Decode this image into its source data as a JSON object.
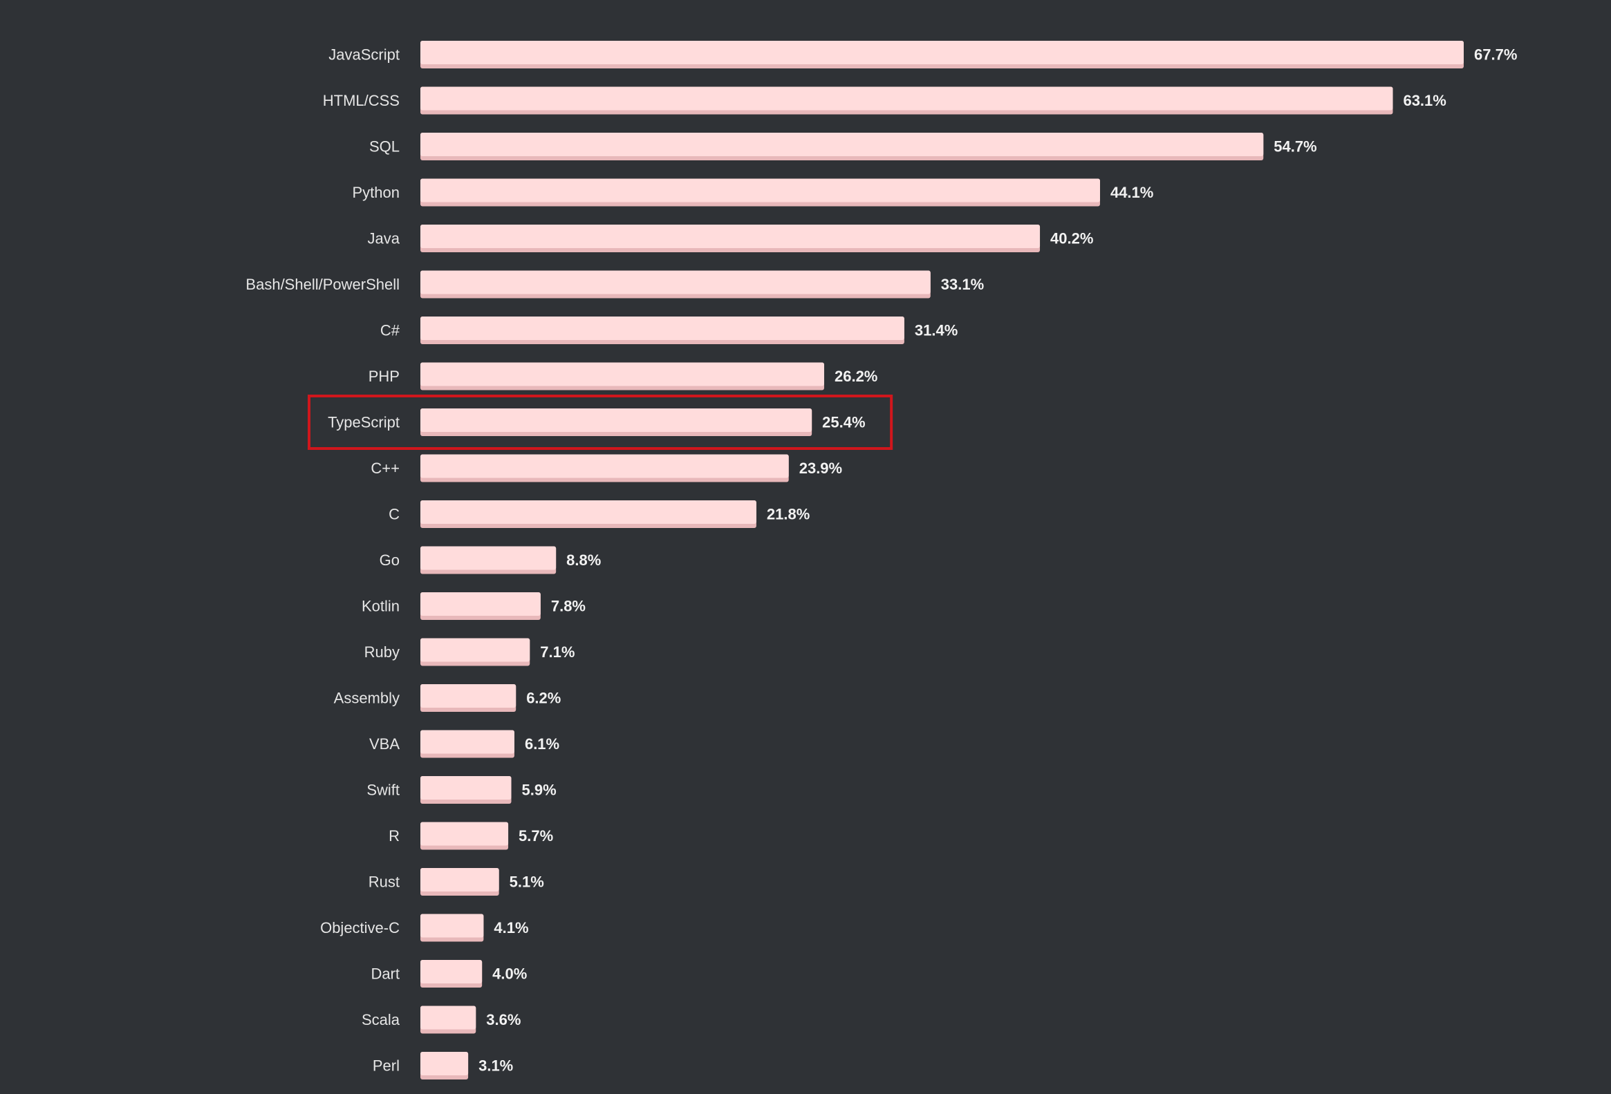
{
  "colors": {
    "background": "#2f3236",
    "bar_fill": "#ffdcdc",
    "bar_shadow": "#e8b8ba",
    "label_text": "#e6e6e6",
    "value_text": "#f2f2f2",
    "highlight": "#d0161c"
  },
  "chart_data": {
    "type": "bar",
    "orientation": "horizontal",
    "title": "",
    "xlabel": "",
    "ylabel": "",
    "xlim": [
      0,
      67.7
    ],
    "grid": false,
    "legend": "none",
    "highlighted_category": "TypeScript",
    "categories": [
      "JavaScript",
      "HTML/CSS",
      "SQL",
      "Python",
      "Java",
      "Bash/Shell/PowerShell",
      "C#",
      "PHP",
      "TypeScript",
      "C++",
      "C",
      "Go",
      "Kotlin",
      "Ruby",
      "Assembly",
      "VBA",
      "Swift",
      "R",
      "Rust",
      "Objective-C",
      "Dart",
      "Scala",
      "Perl"
    ],
    "values": [
      67.7,
      63.1,
      54.7,
      44.1,
      40.2,
      33.1,
      31.4,
      26.2,
      25.4,
      23.9,
      21.8,
      8.8,
      7.8,
      7.1,
      6.2,
      6.1,
      5.9,
      5.7,
      5.1,
      4.1,
      4.0,
      3.6,
      3.1
    ],
    "value_labels": [
      "67.7%",
      "63.1%",
      "54.7%",
      "44.1%",
      "40.2%",
      "33.1%",
      "31.4%",
      "26.2%",
      "25.4%",
      "23.9%",
      "21.8%",
      "8.8%",
      "7.8%",
      "7.1%",
      "6.2%",
      "6.1%",
      "5.9%",
      "5.7%",
      "5.1%",
      "4.1%",
      "4.0%",
      "3.6%",
      "3.1%"
    ]
  }
}
